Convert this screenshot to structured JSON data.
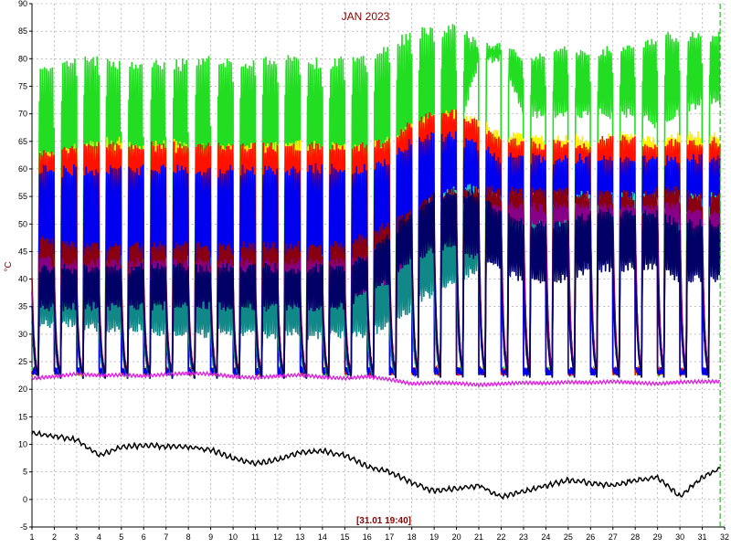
{
  "chart_data": {
    "type": "line",
    "title": "JAN 2023",
    "ylabel": "°C",
    "xlabel": "",
    "timestamp": "[31.01 19:40]",
    "xlim": [
      1,
      32
    ],
    "ylim": [
      -5,
      90
    ],
    "grid": true,
    "x_ticks": [
      1,
      2,
      3,
      4,
      5,
      6,
      7,
      8,
      9,
      10,
      11,
      12,
      13,
      14,
      15,
      16,
      17,
      18,
      19,
      20,
      21,
      22,
      23,
      24,
      25,
      26,
      27,
      28,
      29,
      30,
      31,
      32
    ],
    "y_ticks": [
      -5,
      0,
      5,
      10,
      15,
      20,
      25,
      30,
      35,
      40,
      45,
      50,
      55,
      60,
      65,
      70,
      75,
      80,
      85,
      90
    ],
    "colors": {
      "green": "#22dd22",
      "yellow": "#ffee00",
      "red": "#ff1100",
      "blue": "#0000ee",
      "cyan": "#22cccc",
      "teal": "#118888",
      "maroon": "#880011",
      "purple": "#880088",
      "navy": "#000066",
      "magenta": "#dd22dd",
      "black": "#000000",
      "marker": "#00aa00"
    },
    "series": [
      {
        "key": "green",
        "base": [
          52,
          52,
          52,
          50,
          50,
          50,
          50,
          50,
          50,
          50,
          50,
          50,
          50,
          50,
          50,
          50,
          52,
          54,
          60,
          65,
          80,
          80,
          70,
          70,
          70,
          70,
          70,
          70,
          68,
          70,
          72
        ],
        "peak": [
          79,
          78,
          80,
          80,
          79,
          79,
          79,
          80,
          80,
          79,
          80,
          80,
          80,
          79,
          80,
          80,
          82,
          85,
          85,
          86,
          82,
          82,
          80,
          80,
          82,
          80,
          82,
          82,
          84,
          84,
          84
        ]
      },
      {
        "key": "yellow",
        "base": [
          55,
          55,
          55,
          55,
          55,
          55,
          55,
          55,
          55,
          55,
          55,
          55,
          55,
          55,
          55,
          56,
          58,
          60,
          60,
          60,
          60,
          57,
          57,
          57,
          57,
          57,
          58,
          57,
          57,
          57,
          56
        ],
        "peak": [
          62,
          63,
          64,
          65,
          65,
          64,
          65,
          64,
          64,
          64,
          64,
          64,
          65,
          64,
          64,
          64,
          65,
          68,
          70,
          70,
          69,
          66,
          66,
          65,
          66,
          65,
          66,
          66,
          65,
          66,
          66
        ]
      },
      {
        "key": "red",
        "base": [
          52,
          54,
          54,
          54,
          54,
          54,
          54,
          54,
          54,
          54,
          54,
          54,
          54,
          54,
          54,
          55,
          57,
          58,
          60,
          60,
          59,
          56,
          56,
          55,
          55,
          56,
          56,
          56,
          55,
          55,
          55
        ],
        "peak": [
          62,
          63,
          64,
          64,
          64,
          64,
          64,
          64,
          64,
          64,
          64,
          64,
          64,
          64,
          64,
          64,
          65,
          68,
          70,
          70,
          68,
          65,
          65,
          64,
          65,
          64,
          66,
          65,
          64,
          65,
          65
        ]
      },
      {
        "key": "blue",
        "base": [
          40,
          40,
          40,
          40,
          40,
          40,
          40,
          40,
          40,
          40,
          40,
          40,
          40,
          40,
          40,
          40,
          42,
          45,
          48,
          50,
          46,
          44,
          44,
          44,
          44,
          44,
          44,
          44,
          44,
          44,
          44
        ],
        "peak": [
          60,
          60,
          60,
          60,
          60,
          60,
          60,
          60,
          60,
          60,
          60,
          60,
          60,
          60,
          60,
          60,
          62,
          65,
          66,
          66,
          64,
          62,
          62,
          62,
          62,
          62,
          62,
          62,
          62,
          62,
          62
        ]
      },
      {
        "key": "cyan",
        "base": [
          35,
          33,
          33,
          33,
          33,
          33,
          33,
          33,
          33,
          33,
          33,
          33,
          33,
          33,
          33,
          35,
          38,
          42,
          48,
          52,
          50,
          50,
          50,
          50,
          50,
          50,
          50,
          50,
          50,
          50,
          50
        ],
        "peak": [
          45,
          44,
          44,
          44,
          44,
          44,
          44,
          44,
          44,
          44,
          44,
          44,
          44,
          44,
          44,
          45,
          48,
          50,
          55,
          57,
          56,
          55,
          55,
          55,
          55,
          55,
          55,
          55,
          55,
          55,
          55
        ]
      },
      {
        "key": "teal",
        "base": [
          32,
          32,
          32,
          31,
          31,
          31,
          30,
          30,
          30,
          30,
          30,
          30,
          30,
          30,
          30,
          30,
          32,
          35,
          38,
          40,
          42,
          45,
          45,
          45,
          45,
          45,
          45,
          45,
          45,
          44,
          43
        ],
        "peak": [
          42,
          40,
          40,
          40,
          40,
          40,
          40,
          40,
          40,
          40,
          40,
          40,
          40,
          40,
          40,
          40,
          42,
          45,
          48,
          50,
          50,
          52,
          50,
          50,
          50,
          50,
          50,
          50,
          50,
          50,
          50
        ]
      },
      {
        "key": "maroon",
        "base": [
          40,
          40,
          40,
          40,
          40,
          40,
          40,
          40,
          40,
          40,
          40,
          40,
          40,
          40,
          40,
          42,
          45,
          48,
          50,
          52,
          52,
          52,
          52,
          52,
          52,
          50,
          52,
          50,
          52,
          52,
          50
        ],
        "peak": [
          48,
          47,
          46,
          46,
          46,
          46,
          46,
          46,
          46,
          46,
          46,
          46,
          46,
          46,
          46,
          48,
          50,
          52,
          55,
          56,
          56,
          56,
          56,
          56,
          56,
          55,
          56,
          55,
          56,
          56,
          55
        ]
      },
      {
        "key": "purple",
        "base": [
          37,
          37,
          37,
          37,
          37,
          37,
          37,
          37,
          37,
          37,
          37,
          37,
          37,
          37,
          37,
          38,
          40,
          45,
          48,
          50,
          50,
          50,
          50,
          50,
          50,
          50,
          50,
          50,
          50,
          50,
          48
        ],
        "peak": [
          44,
          43,
          43,
          43,
          43,
          43,
          43,
          43,
          43,
          43,
          43,
          43,
          43,
          43,
          43,
          44,
          46,
          50,
          52,
          53,
          53,
          53,
          53,
          53,
          53,
          53,
          53,
          53,
          53,
          53,
          52
        ]
      },
      {
        "key": "navy",
        "base": [
          35,
          35,
          35,
          35,
          35,
          35,
          35,
          35,
          35,
          35,
          35,
          35,
          35,
          35,
          35,
          38,
          40,
          44,
          45,
          46,
          44,
          42,
          40,
          40,
          40,
          42,
          42,
          42,
          42,
          40,
          40
        ],
        "peak": [
          42,
          42,
          42,
          42,
          42,
          42,
          42,
          42,
          42,
          42,
          42,
          42,
          42,
          42,
          42,
          44,
          48,
          52,
          55,
          56,
          55,
          52,
          50,
          50,
          50,
          52,
          52,
          52,
          52,
          50,
          50
        ]
      }
    ],
    "floor_series": {
      "magenta": {
        "values": [
          22.0,
          22.3,
          22.8,
          22.5,
          22.6,
          22.4,
          22.7,
          22.9,
          22.8,
          22.3,
          22.1,
          22.4,
          22.6,
          22.2,
          22.0,
          22.3,
          21.8,
          21.0,
          21.2,
          21.1,
          20.8,
          21.0,
          21.2,
          21.1,
          21.3,
          21.2,
          21.4,
          21.2,
          21.0,
          21.3,
          21.4
        ]
      },
      "baseline_value": 21.5
    },
    "outdoor_series": {
      "key": "black",
      "values": [
        12,
        11.5,
        10.8,
        8.0,
        9.5,
        9.8,
        9.6,
        9.5,
        9.0,
        7.5,
        6.5,
        7.2,
        8.5,
        8.8,
        8.0,
        6.0,
        5.0,
        3.0,
        1.5,
        2.0,
        2.5,
        0.5,
        1.5,
        2.5,
        3.5,
        3.0,
        2.5,
        3.5,
        4.0,
        0.5,
        4.0,
        6.0
      ]
    }
  }
}
